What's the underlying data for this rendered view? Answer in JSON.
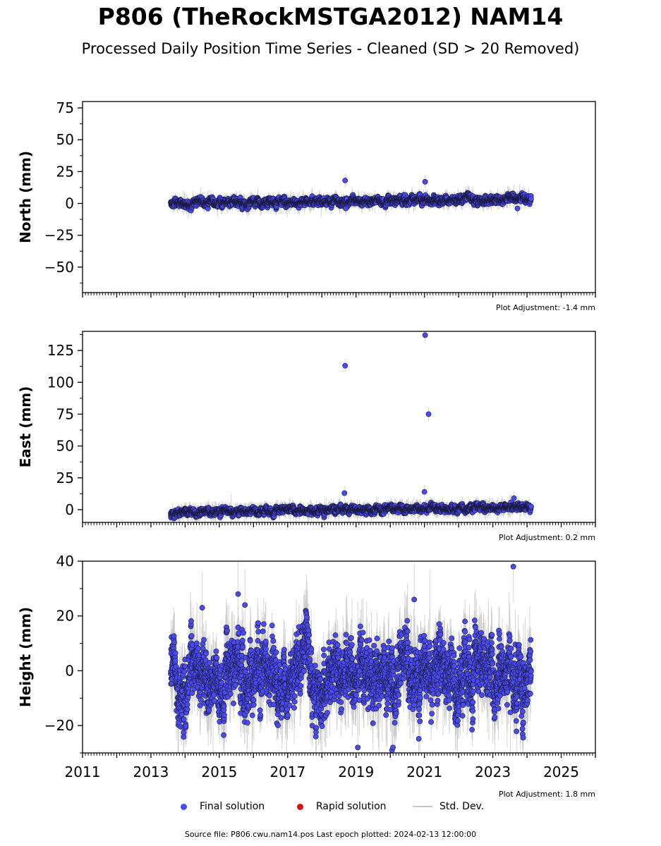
{
  "title": "P806 (TheRockMSTGA2012) NAM14",
  "subtitle": "Processed Daily Position Time Series - Cleaned (SD > 20 Removed)",
  "source_text": "Source file: P806.cwu.nam14.pos  Last epoch plotted: 2024-02-13 12:00:00",
  "legend": {
    "final": "Final solution",
    "rapid": "Rapid solution",
    "std": "Std. Dev."
  },
  "colors": {
    "final": "#4a4aee",
    "final_edge": "#1a1a40",
    "rapid": "#e01010",
    "std": "#c8c8c8"
  },
  "chart_data": [
    {
      "type": "scatter",
      "ylabel": "North (mm)",
      "adjustment": "Plot Adjustment: -1.4 mm",
      "xlim": [
        2011,
        2026
      ],
      "ylim": [
        -70,
        80
      ],
      "yticks": [
        75,
        50,
        25,
        0,
        -25,
        -50
      ],
      "ytick_labels": [
        "75",
        "50",
        "25",
        "0",
        "−25",
        "−50"
      ],
      "x_range": [
        2013.58,
        2024.12
      ],
      "trend": [
        0,
        0.33
      ],
      "scatter_sd": 1.4,
      "err_sd": 2.5,
      "outliers": [
        {
          "x": 2018.68,
          "y": 18
        },
        {
          "x": 2021.02,
          "y": 17
        },
        {
          "x": 2023.72,
          "y": -4
        },
        {
          "x": 2018.7,
          "y": -4
        }
      ]
    },
    {
      "type": "scatter",
      "ylabel": "East (mm)",
      "adjustment": "Plot Adjustment: 0.2 mm",
      "xlim": [
        2011,
        2026
      ],
      "ylim": [
        -10,
        140
      ],
      "yticks": [
        125,
        100,
        75,
        50,
        25,
        0
      ],
      "ytick_labels": [
        "125",
        "100",
        "75",
        "50",
        "25",
        "0"
      ],
      "x_range": [
        2013.58,
        2024.12
      ],
      "trend": [
        -2.5,
        0.45
      ],
      "scatter_sd": 1.2,
      "err_sd": 2.5,
      "outliers": [
        {
          "x": 2018.68,
          "y": 113
        },
        {
          "x": 2021.02,
          "y": 137
        },
        {
          "x": 2021.12,
          "y": 75
        },
        {
          "x": 2018.66,
          "y": 13
        },
        {
          "x": 2021.0,
          "y": 14
        },
        {
          "x": 2023.62,
          "y": 9
        }
      ]
    },
    {
      "type": "scatter",
      "ylabel": "Height (mm)",
      "adjustment": "Plot Adjustment: 1.8 mm",
      "xlim": [
        2011,
        2026
      ],
      "ylim": [
        -30,
        40
      ],
      "yticks": [
        40,
        20,
        0,
        -20
      ],
      "ytick_labels": [
        "40",
        "20",
        "0",
        "−20"
      ],
      "xticks": [
        2011,
        2013,
        2015,
        2017,
        2019,
        2021,
        2023,
        2025
      ],
      "xtick_labels": [
        "2011",
        "2013",
        "2015",
        "2017",
        "2019",
        "2021",
        "2023",
        "2025"
      ],
      "x_range": [
        2013.58,
        2024.12
      ],
      "trend": [
        -2,
        0
      ],
      "scatter_sd": 5.5,
      "err_sd": 6,
      "seasonal": 4,
      "outliers": [
        {
          "x": 2023.6,
          "y": 38
        },
        {
          "x": 2015.55,
          "y": 28
        },
        {
          "x": 2020.7,
          "y": 26
        },
        {
          "x": 2015.75,
          "y": 24
        },
        {
          "x": 2014.5,
          "y": 23
        },
        {
          "x": 2019.05,
          "y": -28
        },
        {
          "x": 2020.05,
          "y": -29
        },
        {
          "x": 2020.08,
          "y": -28
        }
      ]
    }
  ]
}
